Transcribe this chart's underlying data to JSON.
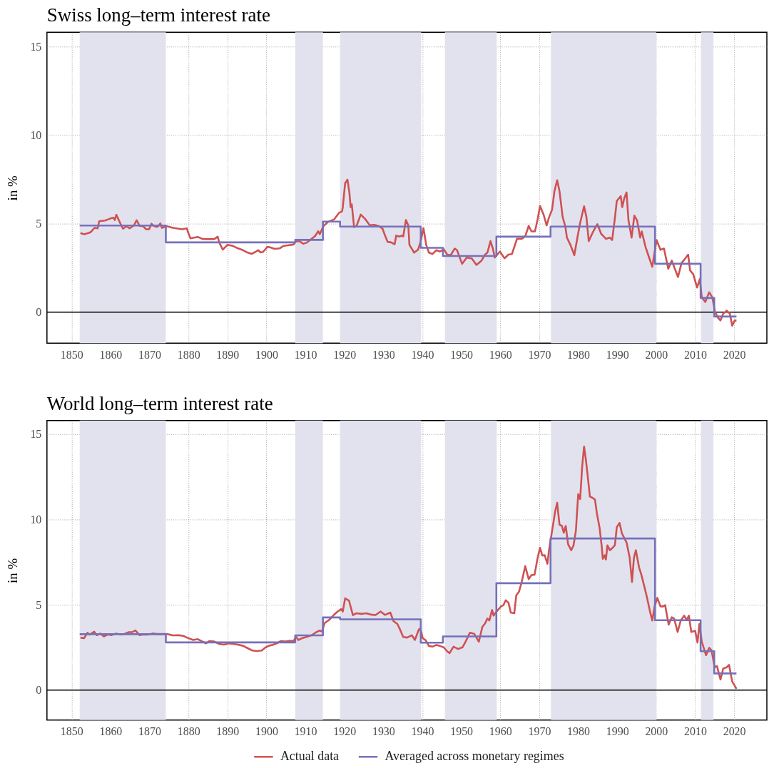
{
  "chart_data": [
    {
      "type": "line",
      "title": "Swiss long–term interest rate",
      "ylabel": "in %",
      "xlim": [
        1843.7,
        2028.4
      ],
      "xticks": [
        1850,
        1860,
        1870,
        1880,
        1890,
        1900,
        1910,
        1920,
        1930,
        1940,
        1950,
        1960,
        1970,
        1980,
        1990,
        2000,
        2010,
        2020
      ],
      "ylim": [
        -1.75,
        15.8
      ],
      "yticks": [
        0,
        5,
        10,
        15
      ],
      "grid": true,
      "legend": "bottom",
      "bands": [
        {
          "axis": "x",
          "from": 1852.1,
          "to": 1874.2,
          "color": "#e2e2ef"
        },
        {
          "axis": "x",
          "from": 1907.4,
          "to": 1914.5,
          "color": "#e2e2ef"
        },
        {
          "axis": "x",
          "from": 1918.9,
          "to": 1939.7,
          "color": "#e2e2ef"
        },
        {
          "axis": "x",
          "from": 1945.8,
          "to": 1959.1,
          "color": "#e2e2ef"
        },
        {
          "axis": "x",
          "from": 1973.0,
          "to": 2000.0,
          "color": "#e2e2ef"
        },
        {
          "axis": "x",
          "from": 2011.5,
          "to": 2014.7,
          "color": "#e2e2ef"
        }
      ],
      "ref_lines": [
        {
          "axis": "y",
          "value": 0,
          "color": "#000000",
          "line_style": "solid"
        }
      ],
      "series": [
        {
          "name": "Actual data",
          "color": "#cf5151",
          "x": [
            1852.3,
            1853.2,
            1854.4,
            1855.0,
            1855.9,
            1856.7,
            1857.1,
            1858.6,
            1859.4,
            1860.0,
            1860.8,
            1861.1,
            1861.5,
            1862.4,
            1863.2,
            1864.1,
            1864.9,
            1866.0,
            1866.7,
            1867.5,
            1868.4,
            1869.1,
            1869.9,
            1870.5,
            1871.3,
            1872.0,
            1872.8,
            1873.2,
            1874.5,
            1876.0,
            1877.5,
            1878.4,
            1879.6,
            1879.8,
            1880.5,
            1882.4,
            1883.6,
            1885.4,
            1886.6,
            1887.5,
            1887.9,
            1888.8,
            1890.0,
            1891.5,
            1892.7,
            1894.0,
            1895.1,
            1896.2,
            1897.3,
            1897.9,
            1898.5,
            1899.1,
            1900.3,
            1901.2,
            1902.1,
            1903.4,
            1904.3,
            1905.5,
            1907.0,
            1907.6,
            1908.5,
            1909.5,
            1910.4,
            1911.3,
            1912.5,
            1913.3,
            1913.7,
            1914.6,
            1915.8,
            1917.4,
            1918.6,
            1919.4,
            1919.6,
            1920.2,
            1920.8,
            1921.3,
            1921.6,
            1921.9,
            1922.5,
            1923.1,
            1924.2,
            1925.3,
            1926.5,
            1927.7,
            1928.9,
            1929.8,
            1930.4,
            1931.1,
            1932.0,
            1932.9,
            1933.3,
            1934.1,
            1934.7,
            1935.1,
            1935.8,
            1936.4,
            1936.7,
            1937.9,
            1938.9,
            1939.5,
            1940.3,
            1941.0,
            1941.7,
            1942.6,
            1943.6,
            1944.5,
            1945.5,
            1946.4,
            1947.3,
            1948.3,
            1948.9,
            1950.2,
            1951.4,
            1952.7,
            1953.9,
            1955.2,
            1956.1,
            1956.7,
            1957.5,
            1958.1,
            1958.6,
            1959.9,
            1961.1,
            1962.1,
            1963.0,
            1964.3,
            1965.5,
            1966.4,
            1967.3,
            1968.0,
            1968.9,
            1969.6,
            1970.2,
            1971.1,
            1971.9,
            1972.5,
            1973.3,
            1973.9,
            1974.6,
            1975.2,
            1976.0,
            1976.7,
            1977.1,
            1978.0,
            1979.0,
            1979.9,
            1980.5,
            1981.5,
            1982.1,
            1982.7,
            1983.7,
            1984.9,
            1985.9,
            1987.1,
            1988.1,
            1988.7,
            1989.3,
            1989.9,
            1990.9,
            1991.3,
            1991.8,
            1992.4,
            1992.9,
            1993.7,
            1994.4,
            1995.1,
            1995.9,
            1996.3,
            1997.3,
            1998.1,
            1999.0,
            2000.1,
            2001.1,
            2002.0,
            2003.1,
            2004.0,
            2005.6,
            2006.5,
            2007.5,
            2008.2,
            2008.7,
            2009.5,
            2010.5,
            2011.2,
            2011.7,
            2012.6,
            2013.6,
            2014.4,
            2015.1,
            2015.9,
            2016.5,
            2017.2,
            2018.1,
            2018.9,
            2019.5,
            2020.1,
            2020.6
          ],
          "values": [
            4.47,
            4.4,
            4.47,
            4.53,
            4.76,
            4.73,
            5.13,
            5.17,
            5.24,
            5.29,
            5.33,
            5.2,
            5.5,
            5.07,
            4.71,
            4.85,
            4.73,
            4.89,
            5.19,
            4.87,
            4.85,
            4.68,
            4.68,
            4.99,
            4.85,
            4.81,
            5.01,
            4.76,
            4.85,
            4.76,
            4.71,
            4.68,
            4.73,
            4.57,
            4.17,
            4.25,
            4.13,
            4.12,
            4.12,
            4.26,
            3.93,
            3.53,
            3.8,
            3.73,
            3.6,
            3.5,
            3.37,
            3.29,
            3.42,
            3.5,
            3.37,
            3.4,
            3.69,
            3.64,
            3.57,
            3.6,
            3.73,
            3.77,
            3.82,
            4.0,
            4.0,
            3.86,
            3.93,
            4.09,
            4.3,
            4.57,
            4.4,
            4.85,
            5.09,
            5.24,
            5.6,
            5.69,
            5.93,
            7.28,
            7.48,
            6.74,
            5.93,
            6.09,
            4.8,
            4.85,
            5.51,
            5.27,
            4.91,
            4.93,
            4.85,
            4.71,
            4.35,
            3.97,
            3.94,
            3.83,
            4.32,
            4.27,
            4.32,
            4.27,
            5.2,
            4.9,
            3.8,
            3.36,
            3.52,
            3.94,
            4.74,
            3.8,
            3.36,
            3.28,
            3.5,
            3.42,
            3.55,
            3.25,
            3.22,
            3.59,
            3.5,
            2.73,
            3.08,
            3.03,
            2.67,
            2.91,
            3.25,
            3.36,
            4.01,
            3.59,
            3.08,
            3.42,
            3.04,
            3.25,
            3.28,
            4.14,
            4.14,
            4.28,
            4.87,
            4.56,
            4.56,
            5.25,
            6.0,
            5.52,
            4.9,
            5.34,
            5.8,
            6.83,
            7.45,
            6.83,
            5.38,
            4.83,
            4.21,
            3.8,
            3.22,
            4.35,
            5.04,
            5.98,
            5.38,
            4.01,
            4.49,
            4.97,
            4.42,
            4.14,
            4.21,
            4.07,
            5.11,
            6.28,
            6.55,
            5.93,
            6.42,
            6.76,
            5.18,
            4.21,
            5.45,
            5.18,
            4.21,
            4.56,
            3.66,
            3.14,
            2.56,
            4.07,
            3.52,
            3.59,
            2.45,
            2.91,
            1.98,
            2.77,
            3.04,
            3.25,
            2.36,
            2.15,
            1.39,
            1.87,
            0.84,
            0.57,
            1.12,
            0.84,
            0.01,
            -0.33,
            -0.47,
            -0.08,
            0.08,
            -0.08,
            -0.77,
            -0.49,
            -0.47
          ]
        },
        {
          "name": "Averaged across monetary regimes",
          "type": "step",
          "color": "#7571b8",
          "x": [
            1852.1,
            1874.2,
            1907.4,
            1914.5,
            1918.9,
            1939.6,
            1945.3,
            1959.0,
            1972.9,
            1999.7,
            2011.4,
            2014.9,
            2020.6
          ],
          "values": [
            4.89,
            3.94,
            4.08,
            5.11,
            4.83,
            3.63,
            3.17,
            4.26,
            4.83,
            2.73,
            0.8,
            -0.25,
            -0.25
          ]
        }
      ]
    },
    {
      "type": "line",
      "title": "World long–term interest rate",
      "ylabel": "in %",
      "xlim": [
        1843.7,
        2028.4
      ],
      "xticks": [
        1850,
        1860,
        1870,
        1880,
        1890,
        1900,
        1910,
        1920,
        1930,
        1940,
        1950,
        1960,
        1970,
        1980,
        1990,
        2000,
        2010,
        2020
      ],
      "ylim": [
        -1.75,
        15.8
      ],
      "yticks": [
        0,
        5,
        10,
        15
      ],
      "grid": true,
      "legend": "bottom",
      "bands": [
        {
          "axis": "x",
          "from": 1852.1,
          "to": 1874.2,
          "color": "#e2e2ef"
        },
        {
          "axis": "x",
          "from": 1907.4,
          "to": 1914.5,
          "color": "#e2e2ef"
        },
        {
          "axis": "x",
          "from": 1918.9,
          "to": 1939.7,
          "color": "#e2e2ef"
        },
        {
          "axis": "x",
          "from": 1945.8,
          "to": 1959.1,
          "color": "#e2e2ef"
        },
        {
          "axis": "x",
          "from": 1973.0,
          "to": 2000.0,
          "color": "#e2e2ef"
        },
        {
          "axis": "x",
          "from": 2011.5,
          "to": 2014.7,
          "color": "#e2e2ef"
        }
      ],
      "ref_lines": [
        {
          "axis": "y",
          "value": 0,
          "color": "#000000",
          "line_style": "solid"
        }
      ],
      "series": [
        {
          "name": "Actual data",
          "color": "#cf5151",
          "x": [
            1852.3,
            1853.2,
            1854.1,
            1854.7,
            1855.8,
            1856.5,
            1857.4,
            1858.3,
            1859.3,
            1860.2,
            1861.4,
            1862.6,
            1863.5,
            1864.7,
            1865.6,
            1866.4,
            1867.5,
            1868.4,
            1869.6,
            1870.8,
            1872.0,
            1873.2,
            1874.5,
            1876.0,
            1877.5,
            1878.7,
            1879.6,
            1881.2,
            1882.4,
            1883.3,
            1884.5,
            1885.4,
            1886.6,
            1887.9,
            1889.1,
            1890.3,
            1891.5,
            1892.7,
            1894.0,
            1895.2,
            1896.4,
            1897.6,
            1898.8,
            1899.7,
            1900.6,
            1901.8,
            1902.8,
            1903.7,
            1904.9,
            1906.1,
            1907.0,
            1907.6,
            1908.2,
            1909.1,
            1910.4,
            1911.6,
            1912.8,
            1913.7,
            1914.3,
            1914.9,
            1916.1,
            1917.4,
            1918.3,
            1919.2,
            1919.6,
            1920.2,
            1921.2,
            1922.2,
            1923.1,
            1924.4,
            1925.6,
            1926.8,
            1928.0,
            1929.3,
            1930.4,
            1931.8,
            1932.6,
            1933.6,
            1934.3,
            1935.1,
            1936.1,
            1937.3,
            1938.1,
            1939.1,
            1939.5,
            1940.1,
            1940.8,
            1941.7,
            1942.6,
            1943.6,
            1944.5,
            1945.5,
            1946.4,
            1947.0,
            1948.0,
            1949.2,
            1950.3,
            1951.1,
            1952.2,
            1953.3,
            1954.5,
            1955.4,
            1956.1,
            1956.7,
            1957.2,
            1957.9,
            1958.3,
            1959.2,
            1960.2,
            1960.8,
            1961.4,
            1962.1,
            1962.7,
            1963.6,
            1964.1,
            1964.8,
            1965.5,
            1966.4,
            1967.3,
            1968.0,
            1968.8,
            1969.6,
            1970.2,
            1970.8,
            1971.4,
            1972.1,
            1972.5,
            1973.3,
            1974.1,
            1974.6,
            1975.2,
            1975.8,
            1976.3,
            1976.8,
            1977.4,
            1978.2,
            1978.8,
            1979.4,
            1980.0,
            1980.5,
            1981.0,
            1981.5,
            1981.9,
            1982.4,
            1983.0,
            1983.7,
            1984.3,
            1984.8,
            1985.5,
            1986.0,
            1986.3,
            1986.8,
            1987.1,
            1987.5,
            1988.1,
            1988.8,
            1989.4,
            1989.9,
            1990.6,
            1991.2,
            1991.8,
            1992.4,
            1993.2,
            1993.8,
            1994.3,
            1994.8,
            1995.6,
            1996.2,
            1996.9,
            1997.6,
            1998.4,
            1999.0,
            1999.6,
            2000.3,
            2001.1,
            2001.8,
            2002.3,
            2003.2,
            2004.0,
            2004.6,
            2005.5,
            2006.3,
            2007.2,
            2007.8,
            2008.4,
            2009.0,
            2010.0,
            2010.6,
            2011.1,
            2011.7,
            2012.8,
            2013.6,
            2014.2,
            2015.0,
            2015.6,
            2016.5,
            2017.2,
            2018.1,
            2018.7,
            2019.5,
            2020.6
          ],
          "values": [
            3.08,
            3.04,
            3.36,
            3.26,
            3.43,
            3.22,
            3.32,
            3.15,
            3.26,
            3.22,
            3.32,
            3.26,
            3.29,
            3.4,
            3.4,
            3.5,
            3.22,
            3.26,
            3.26,
            3.32,
            3.29,
            3.29,
            3.29,
            3.21,
            3.22,
            3.18,
            3.08,
            2.94,
            2.99,
            2.88,
            2.74,
            2.88,
            2.85,
            2.71,
            2.67,
            2.74,
            2.71,
            2.67,
            2.6,
            2.46,
            2.32,
            2.29,
            2.32,
            2.49,
            2.6,
            2.67,
            2.76,
            2.88,
            2.85,
            2.9,
            2.88,
            3.13,
            2.94,
            3.04,
            3.13,
            3.22,
            3.4,
            3.5,
            3.43,
            3.92,
            4.12,
            4.43,
            4.61,
            4.75,
            4.61,
            5.38,
            5.24,
            4.4,
            4.51,
            4.47,
            4.51,
            4.43,
            4.4,
            4.61,
            4.41,
            4.55,
            4.05,
            3.88,
            3.55,
            3.12,
            3.08,
            3.22,
            2.94,
            3.55,
            3.62,
            3.05,
            2.94,
            2.59,
            2.55,
            2.65,
            2.59,
            2.51,
            2.27,
            2.17,
            2.55,
            2.41,
            2.51,
            2.84,
            3.37,
            3.31,
            2.84,
            3.7,
            3.91,
            4.2,
            4.08,
            4.7,
            4.37,
            4.65,
            4.91,
            4.98,
            5.27,
            5.13,
            4.55,
            4.51,
            5.55,
            5.77,
            6.34,
            7.27,
            6.51,
            6.74,
            6.77,
            7.77,
            8.34,
            7.89,
            7.91,
            7.41,
            8.2,
            9.34,
            10.49,
            10.99,
            9.7,
            9.63,
            9.23,
            9.63,
            8.56,
            8.2,
            8.49,
            9.34,
            11.49,
            11.2,
            13.06,
            14.28,
            13.63,
            12.63,
            11.35,
            11.27,
            11.17,
            10.35,
            9.49,
            8.49,
            7.7,
            7.91,
            7.66,
            8.49,
            8.2,
            8.34,
            8.49,
            9.56,
            9.8,
            9.2,
            8.92,
            8.66,
            7.77,
            6.34,
            7.77,
            8.2,
            7.2,
            6.77,
            6.13,
            5.48,
            4.63,
            4.08,
            4.91,
            5.41,
            4.91,
            4.91,
            4.98,
            3.84,
            4.27,
            4.2,
            3.41,
            4.08,
            4.37,
            4.12,
            4.37,
            3.41,
            3.48,
            2.79,
            3.88,
            2.84,
            2.05,
            2.48,
            2.34,
            1.34,
            1.41,
            0.62,
            1.27,
            1.34,
            1.48,
            0.51,
            0.08
          ]
        },
        {
          "name": "Averaged across monetary regimes",
          "type": "step",
          "color": "#7571b8",
          "x": [
            1852.1,
            1874.2,
            1907.4,
            1914.5,
            1918.9,
            1939.6,
            1945.3,
            1959.0,
            1972.9,
            1999.7,
            2011.4,
            2014.9,
            2020.6
          ],
          "values": [
            3.28,
            2.8,
            3.21,
            4.26,
            4.15,
            2.78,
            3.15,
            6.27,
            8.89,
            4.1,
            2.28,
            0.98,
            0.98
          ]
        }
      ]
    }
  ]
}
